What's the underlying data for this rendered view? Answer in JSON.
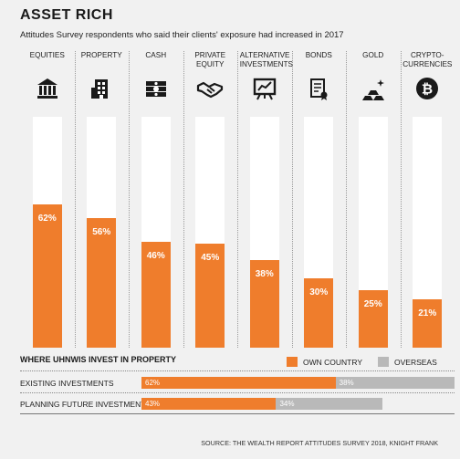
{
  "title": "ASSET RICH",
  "subtitle": "Attitudes Survey respondents who said their clients' exposure had increased in 2017",
  "colors": {
    "orange": "#ef7d2c",
    "grey": "#b9b9b9",
    "track": "#ffffff",
    "background": "#f1f1f1"
  },
  "chart_data": [
    {
      "type": "bar",
      "categories": [
        "EQUITIES",
        "PROPERTY",
        "CASH",
        "PRIVATE EQUITY",
        "ALTERNATIVE INVESTMENTS",
        "BONDS",
        "GOLD",
        "CRYPTO-CURRENCIES"
      ],
      "category_lines": [
        [
          "EQUITIES"
        ],
        [
          "PROPERTY"
        ],
        [
          "CASH"
        ],
        [
          "PRIVATE",
          "EQUITY"
        ],
        [
          "ALTERNATIVE",
          "INVESTMENTS"
        ],
        [
          "BONDS"
        ],
        [
          "GOLD"
        ],
        [
          "CRYPTO-",
          "CURRENCIES"
        ]
      ],
      "icons": [
        "bank-icon",
        "building-icon",
        "cash-icon",
        "handshake-icon",
        "easel-chart-icon",
        "scroll-icon",
        "gold-bars-icon",
        "bitcoin-icon"
      ],
      "values": [
        62,
        56,
        46,
        45,
        38,
        30,
        25,
        21
      ],
      "value_labels": [
        "62%",
        "56%",
        "46%",
        "45%",
        "38%",
        "30%",
        "25%",
        "21%"
      ],
      "ylim": [
        0,
        100
      ]
    },
    {
      "type": "bar",
      "orientation": "horizontal",
      "stacked": true,
      "title": "WHERE UHNWIs INVEST IN PROPERTY",
      "legend": [
        "OWN COUNTRY",
        "OVERSEAS"
      ],
      "categories": [
        "EXISTING INVESTMENTS",
        "PLANNING FUTURE INVESTMENTS"
      ],
      "series": [
        {
          "name": "OWN COUNTRY",
          "values": [
            62,
            43
          ],
          "labels": [
            "62%",
            "43%"
          ]
        },
        {
          "name": "OVERSEAS",
          "values": [
            38,
            34
          ],
          "labels": [
            "38%",
            "34%"
          ]
        }
      ]
    }
  ],
  "source": "SOURCE: THE WEALTH REPORT ATTITUDES SURVEY 2018, KNIGHT FRANK"
}
